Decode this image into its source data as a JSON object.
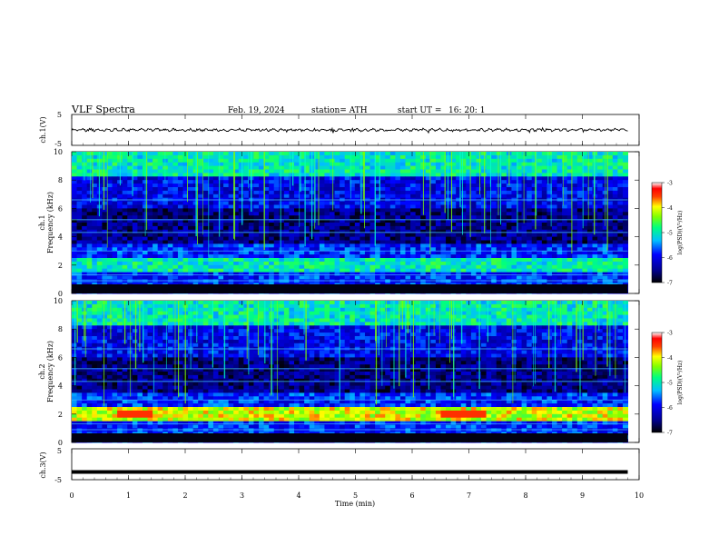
{
  "header": {
    "title": "VLF  Spectra",
    "date": "Feb. 19, 2024",
    "station": "station= ATH",
    "start_label": "start  UT  =",
    "start_time": "16: 20: 1"
  },
  "chart_data": [
    {
      "type": "line",
      "panel": "ch1-waveform",
      "ylabel": "ch.1(V)",
      "yticks": [
        "5",
        "-5"
      ],
      "ylim": [
        -5,
        5
      ],
      "xlim": [
        0,
        10
      ],
      "series": [
        {
          "description_values_approx": [
            0.2,
            -0.3,
            0.1,
            0.0
          ]
        }
      ]
    },
    {
      "type": "heatmap",
      "panel": "ch1-spectrogram",
      "ylabel": "Frequency  (kHz)",
      "channel_label": "ch.1",
      "yticks": [
        "0",
        "2",
        "4",
        "6",
        "8",
        "10"
      ],
      "ylim": [
        0,
        10
      ],
      "xlim": [
        0,
        9.8
      ],
      "colorbar": {
        "label": "log(PSD)(V²/Hz)",
        "ticks": [
          "-3",
          "-4",
          "-5",
          "-6",
          "-7"
        ],
        "range": [
          -7,
          -3
        ]
      }
    },
    {
      "type": "heatmap",
      "panel": "ch2-spectrogram",
      "ylabel": "Frequency  (kHz)",
      "channel_label": "ch.2",
      "yticks": [
        "0",
        "2",
        "4",
        "6",
        "8",
        "10"
      ],
      "ylim": [
        0,
        10
      ],
      "xlim": [
        0,
        9.8
      ],
      "colorbar": {
        "label": "log(PSD)(V²/Hz)",
        "ticks": [
          "-3",
          "-4",
          "-5",
          "-6",
          "-7"
        ],
        "range": [
          -7,
          -3
        ]
      }
    },
    {
      "type": "line",
      "panel": "ch3-waveform",
      "ylabel": "ch.3(V)",
      "yticks": [
        "5",
        "-5"
      ],
      "ylim": [
        -5,
        5
      ],
      "xlim": [
        0,
        10
      ],
      "series": [
        {
          "description_values_approx": [
            -2.5,
            -2.5
          ]
        }
      ]
    }
  ],
  "xaxis": {
    "label": "Time  (min)",
    "ticks": [
      "0",
      "1",
      "2",
      "3",
      "4",
      "5",
      "6",
      "7",
      "8",
      "9",
      "10"
    ]
  },
  "colors": {
    "spec_dark": "#000033",
    "spec_blue": "#0000ff",
    "spec_cyan": "#00ffff",
    "spec_green": "#00ff00",
    "spec_yellow": "#ffff00",
    "spec_red": "#ff0000"
  }
}
